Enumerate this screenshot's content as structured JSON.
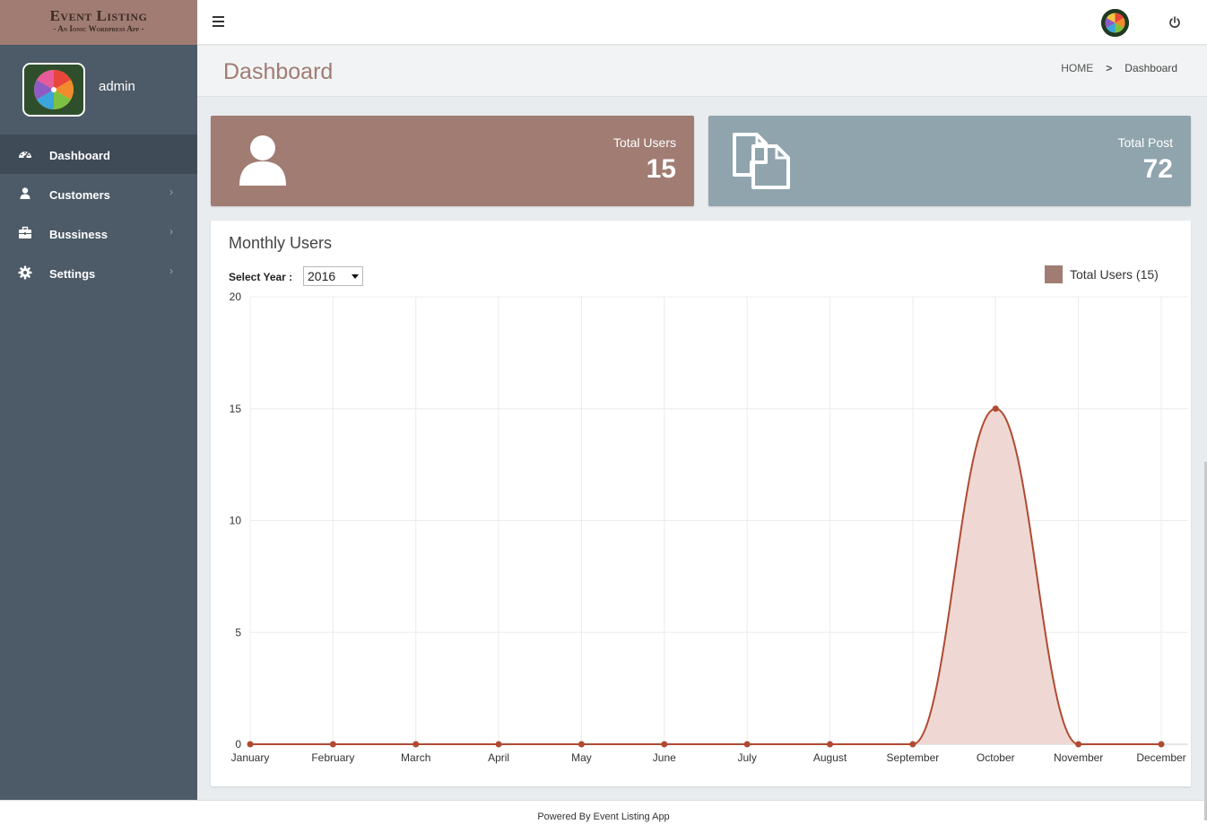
{
  "brand": {
    "title": "Event Listing",
    "subtitle": "- An Ionic Wordpress App -"
  },
  "user": {
    "name": "admin"
  },
  "sidebar": {
    "items": [
      {
        "label": "Dashboard",
        "icon": "dashboard-icon",
        "active": true
      },
      {
        "label": "Customers",
        "icon": "user-icon",
        "chevron": "›"
      },
      {
        "label": "Bussiness",
        "icon": "briefcase-icon",
        "chevron": "›"
      },
      {
        "label": "Settings",
        "icon": "gear-icon",
        "chevron": "›"
      }
    ]
  },
  "header": {
    "title": "Dashboard"
  },
  "breadcrumb": {
    "home": "HOME",
    "separator": ">",
    "current": "Dashboard"
  },
  "stats": {
    "users": {
      "label": "Total Users",
      "value": "15",
      "color": "#a07c72"
    },
    "posts": {
      "label": "Total Post",
      "value": "72",
      "color": "#8fa4ad"
    }
  },
  "chart_panel": {
    "title": "Monthly Users",
    "year_label": "Select Year :",
    "year_value": "2016",
    "legend": "Total Users  (15)"
  },
  "chart_data": {
    "type": "area",
    "categories": [
      "January",
      "February",
      "March",
      "April",
      "May",
      "June",
      "July",
      "August",
      "September",
      "October",
      "November",
      "December"
    ],
    "series": [
      {
        "name": "Total Users",
        "values": [
          0,
          0,
          0,
          0,
          0,
          0,
          0,
          0,
          0,
          15,
          0,
          0
        ],
        "color": "#b04a32",
        "fill": "#efd8d3"
      }
    ],
    "ylim": [
      0,
      20
    ],
    "yticks": [
      0,
      5,
      10,
      15,
      20
    ],
    "grid": true,
    "legend_position": "top-right"
  },
  "footer": {
    "text": "Powered By Event Listing App"
  }
}
